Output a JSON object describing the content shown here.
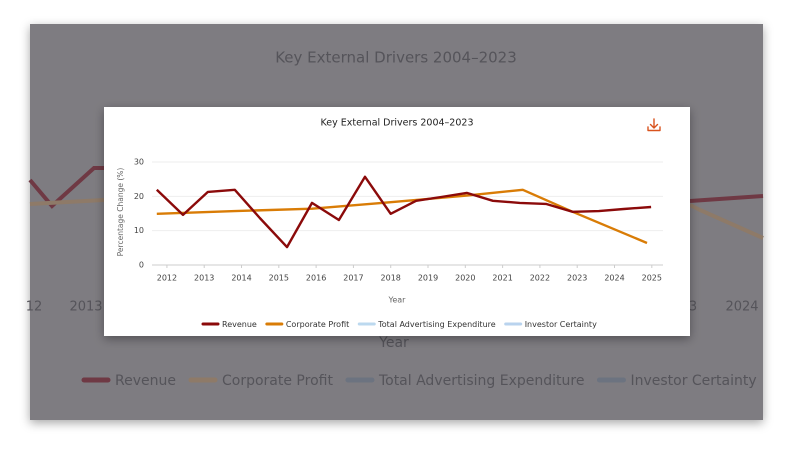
{
  "background": {
    "title": "Key External Drivers 2004–2023",
    "x_labels": [
      "12",
      "2013",
      "3",
      "2024"
    ],
    "x_label": "Year",
    "legend": [
      "Revenue",
      "Corporate Profit",
      "Total Advertising Expenditure",
      "Investor Certainty"
    ]
  },
  "chart_data": {
    "type": "line",
    "title": "Key External Drivers 2004–2023",
    "x_label": "Year",
    "y_label": "Percentage Change (%)",
    "xlim": [
      2011.6,
      2025.3
    ],
    "xticks": [
      2012,
      2013,
      2014,
      2015,
      2016,
      2017,
      2018,
      2019,
      2020,
      2021,
      2022,
      2023,
      2024,
      2025
    ],
    "ylim": [
      0,
      30
    ],
    "yticks": [
      0,
      10,
      20,
      30
    ],
    "grid": true,
    "legend": "bottom",
    "series": [
      {
        "name": "Revenue",
        "color": "#8b0a0a",
        "x": [
          2011.73,
          2012.43,
          2013.1,
          2013.82,
          2014.49,
          2015.22,
          2015.89,
          2016.61,
          2017.31,
          2018.0,
          2018.68,
          2019.35,
          2020.04,
          2020.74,
          2021.46,
          2022.16,
          2022.88,
          2023.58,
          2024.25,
          2024.98
        ],
        "values": [
          21.9,
          14.6,
          21.3,
          21.9,
          13.7,
          5.2,
          18.1,
          13.1,
          25.7,
          14.9,
          18.7,
          19.8,
          21,
          18.7,
          18.1,
          17.8,
          15.5,
          15.7,
          16.3,
          16.9
        ]
      },
      {
        "name": "Corporate Profit",
        "color": "#d97c06",
        "x": [
          2011.73,
          2013.82,
          2015.89,
          2018.0,
          2020.04,
          2021.54,
          2022.88,
          2024.87
        ],
        "values": [
          14.9,
          15.7,
          16.4,
          18.3,
          20.2,
          21.9,
          15.5,
          6.4
        ]
      },
      {
        "name": "Total Advertising Expenditure",
        "color": "#bcd9ef",
        "x": [],
        "values": []
      },
      {
        "name": "Investor Certainty",
        "color": "#b9d3ee",
        "x": [],
        "values": []
      }
    ]
  }
}
